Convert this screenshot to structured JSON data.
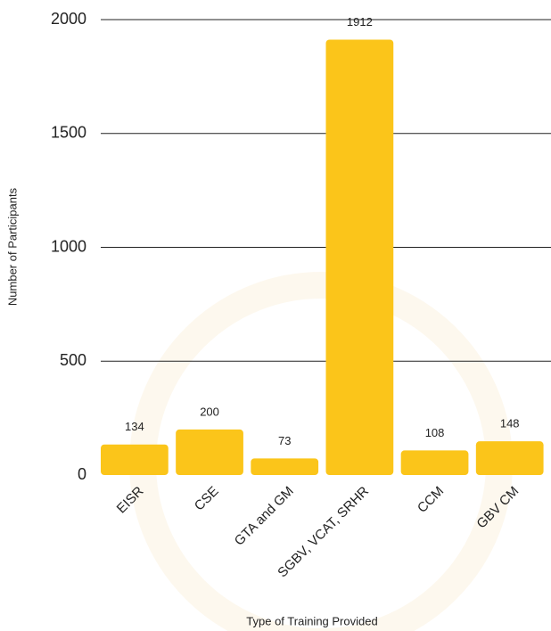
{
  "chart_data": {
    "type": "bar",
    "x_label": "Type of Training Provided",
    "y_label": "Number of Participants",
    "categories": [
      "EISR",
      "CSE",
      "GTA and GM",
      "SGBV, VCAT, SRHR",
      "CCM",
      "GBV CM"
    ],
    "values": [
      134,
      200,
      73,
      1912,
      108,
      148
    ],
    "color": "#fbc51a",
    "ylim": [
      0,
      2000
    ],
    "yticks": [
      0,
      500,
      1000,
      1500,
      2000
    ],
    "grid": true
  }
}
